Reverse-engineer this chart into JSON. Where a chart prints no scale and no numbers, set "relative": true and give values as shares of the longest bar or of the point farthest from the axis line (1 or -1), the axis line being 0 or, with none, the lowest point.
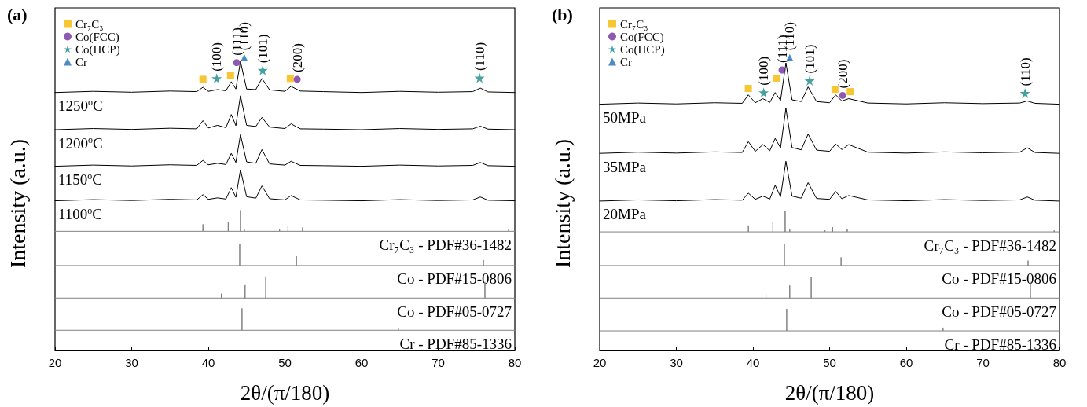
{
  "chart_data": [
    {
      "type": "line",
      "title": "(a)",
      "xlabel": "2θ/(π/180)",
      "ylabel": "Intensity (a.u.)",
      "relative": true,
      "legend": "top left",
      "xlim": [
        20,
        80
      ],
      "xticks": [
        20,
        30,
        40,
        50,
        60,
        70,
        80
      ],
      "x": [
        20,
        25,
        30,
        35,
        38.5,
        39.3,
        40,
        41.2,
        42.3,
        43,
        43.6,
        44.2,
        45,
        46.2,
        47,
        48,
        50,
        50.8,
        52,
        55,
        60,
        65,
        70,
        74.5,
        75.5,
        76.5,
        80
      ],
      "series": [
        {
          "color": "#000000",
          "values": [
            0.881,
            0.885,
            0.882,
            0.886,
            0.884,
            0.899,
            0.885,
            0.891,
            0.887,
            0.918,
            0.893,
            0.987,
            0.893,
            0.891,
            0.929,
            0.89,
            0.885,
            0.902,
            0.886,
            0.884,
            0.881,
            0.885,
            0.882,
            0.884,
            0.896,
            0.883,
            0.881
          ]
        },
        {
          "color": "#000000",
          "values": [
            0.754,
            0.758,
            0.755,
            0.759,
            0.757,
            0.785,
            0.76,
            0.769,
            0.761,
            0.806,
            0.768,
            0.87,
            0.769,
            0.765,
            0.796,
            0.763,
            0.758,
            0.774,
            0.757,
            0.756,
            0.754,
            0.758,
            0.755,
            0.757,
            0.766,
            0.756,
            0.754
          ]
        },
        {
          "color": "#000000",
          "values": [
            0.629,
            0.633,
            0.63,
            0.634,
            0.632,
            0.649,
            0.634,
            0.639,
            0.635,
            0.673,
            0.642,
            0.737,
            0.644,
            0.639,
            0.686,
            0.637,
            0.633,
            0.646,
            0.632,
            0.631,
            0.629,
            0.633,
            0.63,
            0.632,
            0.642,
            0.631,
            0.629
          ]
        },
        {
          "color": "#000000",
          "values": [
            0.511,
            0.515,
            0.512,
            0.516,
            0.514,
            0.532,
            0.516,
            0.521,
            0.517,
            0.556,
            0.523,
            0.617,
            0.525,
            0.52,
            0.562,
            0.518,
            0.514,
            0.529,
            0.514,
            0.513,
            0.511,
            0.515,
            0.512,
            0.514,
            0.524,
            0.513,
            0.511
          ]
        },
        {
          "color": "#808080",
          "x": [
            20,
            39.3,
            39.3,
            39.3,
            42.6,
            42.6,
            42.6,
            44.2,
            44.2,
            44.2,
            44.7,
            44.7,
            44.7,
            49.3,
            49.3,
            49.3,
            50.4,
            50.4,
            50.4,
            52.3,
            52.3,
            52.3,
            79.2,
            79.2,
            79.2,
            80
          ],
          "values": [
            0.407,
            0.407,
            0.431,
            0.407,
            0.407,
            0.44,
            0.407,
            0.407,
            0.479,
            0.407,
            0.407,
            0.415,
            0.407,
            0.407,
            0.413,
            0.407,
            0.407,
            0.425,
            0.407,
            0.407,
            0.42,
            0.407,
            0.407,
            0.415,
            0.407,
            0.407
          ]
        },
        {
          "color": "#808080",
          "x": [
            20,
            44.1,
            44.1,
            44.1,
            51.5,
            51.5,
            51.5,
            75.9,
            75.9,
            75.9,
            80
          ],
          "values": [
            0.29,
            0.29,
            0.364,
            0.29,
            0.29,
            0.322,
            0.29,
            0.29,
            0.309,
            0.29,
            0.29
          ]
        },
        {
          "color": "#808080",
          "x": [
            20,
            41.7,
            41.7,
            41.7,
            44.8,
            44.8,
            44.8,
            47.5,
            47.5,
            47.5,
            76.1,
            76.1,
            76.1,
            80
          ],
          "values": [
            0.179,
            0.179,
            0.194,
            0.179,
            0.179,
            0.223,
            0.179,
            0.179,
            0.253,
            0.179,
            0.179,
            0.234,
            0.179,
            0.179
          ]
        },
        {
          "color": "#808080",
          "x": [
            20,
            44.4,
            44.4,
            44.4,
            64.8,
            64.8,
            64.8,
            80
          ],
          "values": [
            0.069,
            0.069,
            0.144,
            0.069,
            0.069,
            0.077,
            0.069,
            0.069
          ]
        },
        {
          "type": "scatter",
          "name": "Cr₇C₃",
          "marker": "square",
          "color": "#f5b800",
          "x": [
            39.3,
            42.9,
            50.7
          ],
          "values": [
            0.926,
            0.939,
            0.929
          ]
        },
        {
          "type": "scatter",
          "name": "Co(FCC)",
          "marker": "circle",
          "color": "#7030a0",
          "x": [
            43.7,
            51.6
          ],
          "values": [
            0.983,
            0.926
          ]
        },
        {
          "type": "scatter",
          "name": "Co(HCP)",
          "marker": "star",
          "color": "#1a8a8a",
          "x": [
            41.1,
            47.1,
            75.4
          ],
          "values": [
            0.929,
            0.957,
            0.931
          ]
        },
        {
          "type": "scatter",
          "name": "Cr",
          "marker": "triangle",
          "color": "#1f6fb5",
          "x": [
            44.7
          ],
          "values": [
            1
          ]
        }
      ],
      "annotations": [
        {
          "text": "(100)",
          "x": 41.1,
          "y": 0.929
        },
        {
          "text": "(111)",
          "x": 43.7,
          "y": 0.983
        },
        {
          "text": "(110)",
          "x": 44.7,
          "y": 1
        },
        {
          "text": "(101)",
          "x": 47.1,
          "y": 0.957
        },
        {
          "text": "(200)",
          "x": 51.6,
          "y": 0.926
        },
        {
          "text": "(110)",
          "x": 75.4,
          "y": 0.931
        },
        "1250$^{o}$C",
        "1200$^{o}$C",
        "1150$^{o}$C",
        "1100$^{o}$C",
        "Cr₇C₃ - PDF#36-1482",
        "Co - PDF#15-0806",
        "Co - PDF#05-0727",
        "Cr - PDF#85-1336"
      ]
    },
    {
      "type": "line",
      "title": "(b)",
      "xlabel": "2θ/(π/180)",
      "ylabel": "Intensity (a.u.)",
      "relative": true,
      "legend": "top left",
      "xlim": [
        20,
        80
      ],
      "xticks": [
        20,
        30,
        40,
        50,
        60,
        70,
        80
      ],
      "x": [
        20,
        25,
        30,
        35,
        38.6,
        39.4,
        40.3,
        41.3,
        42.2,
        42.9,
        43.6,
        44.3,
        45.1,
        46.3,
        47.2,
        48.3,
        50,
        50.8,
        51.6,
        52.5,
        55,
        60,
        65,
        70,
        74.8,
        75.8,
        76.8,
        80
      ],
      "series": [
        {
          "color": "#000000",
          "values": [
            0.841,
            0.845,
            0.842,
            0.846,
            0.844,
            0.873,
            0.846,
            0.86,
            0.847,
            0.881,
            0.854,
            0.982,
            0.856,
            0.85,
            0.9,
            0.85,
            0.846,
            0.873,
            0.852,
            0.86,
            0.845,
            0.842,
            0.846,
            0.843,
            0.845,
            0.852,
            0.844,
            0.841
          ]
        },
        {
          "color": "#000000",
          "values": [
            0.673,
            0.677,
            0.674,
            0.678,
            0.676,
            0.713,
            0.68,
            0.703,
            0.682,
            0.724,
            0.692,
            0.827,
            0.693,
            0.685,
            0.739,
            0.684,
            0.68,
            0.705,
            0.686,
            0.703,
            0.677,
            0.674,
            0.678,
            0.675,
            0.677,
            0.692,
            0.676,
            0.673
          ]
        },
        {
          "color": "#000000",
          "values": [
            0.51,
            0.514,
            0.511,
            0.515,
            0.513,
            0.537,
            0.516,
            0.527,
            0.517,
            0.564,
            0.525,
            0.646,
            0.527,
            0.52,
            0.573,
            0.519,
            0.516,
            0.543,
            0.518,
            0.529,
            0.514,
            0.511,
            0.515,
            0.512,
            0.514,
            0.524,
            0.513,
            0.51
          ]
        },
        {
          "color": "#808080",
          "x": [
            20,
            39.4,
            39.4,
            39.4,
            42.6,
            42.6,
            42.6,
            44.2,
            44.2,
            44.2,
            44.8,
            44.8,
            44.8,
            49.4,
            49.4,
            49.4,
            50.4,
            50.4,
            50.4,
            52.3,
            52.3,
            52.3,
            79.3,
            79.3,
            79.3,
            80
          ],
          "values": [
            0.405,
            0.405,
            0.427,
            0.405,
            0.405,
            0.437,
            0.405,
            0.405,
            0.475,
            0.405,
            0.405,
            0.413,
            0.405,
            0.405,
            0.41,
            0.405,
            0.405,
            0.421,
            0.405,
            0.405,
            0.416,
            0.405,
            0.405,
            0.41,
            0.405,
            0.405
          ]
        },
        {
          "color": "#808080",
          "x": [
            20,
            44.1,
            44.1,
            44.1,
            51.5,
            51.5,
            51.5,
            75.9,
            75.9,
            75.9,
            80
          ],
          "values": [
            0.29,
            0.29,
            0.362,
            0.29,
            0.29,
            0.318,
            0.29,
            0.29,
            0.307,
            0.29,
            0.29
          ]
        },
        {
          "color": "#808080",
          "x": [
            20,
            41.7,
            41.7,
            41.7,
            44.8,
            44.8,
            44.8,
            47.6,
            47.6,
            47.6,
            76.2,
            76.2,
            76.2,
            80
          ],
          "values": [
            0.179,
            0.179,
            0.193,
            0.179,
            0.179,
            0.222,
            0.179,
            0.179,
            0.25,
            0.179,
            0.179,
            0.234,
            0.179,
            0.179
          ]
        },
        {
          "color": "#808080",
          "x": [
            20,
            44.4,
            44.4,
            44.4,
            64.8,
            64.8,
            64.8,
            80
          ],
          "values": [
            0.067,
            0.067,
            0.142,
            0.067,
            0.067,
            0.078,
            0.067,
            0.067
          ]
        },
        {
          "type": "scatter",
          "name": "Cr₇C₃",
          "marker": "square",
          "color": "#f5b800",
          "x": [
            39.4,
            43.1,
            50.7,
            52.7
          ],
          "values": [
            0.895,
            0.93,
            0.892,
            0.884
          ]
        },
        {
          "type": "scatter",
          "name": "Co(FCC)",
          "marker": "circle",
          "color": "#7030a0",
          "x": [
            43.8,
            51.7
          ],
          "values": [
            0.958,
            0.871
          ]
        },
        {
          "type": "scatter",
          "name": "Co(HCP)",
          "marker": "star",
          "color": "#1a8a8a",
          "x": [
            41.4,
            47.4,
            75.5
          ],
          "values": [
            0.881,
            0.922,
            0.879
          ]
        },
        {
          "type": "scatter",
          "name": "Cr",
          "marker": "triangle",
          "color": "#1f6fb5",
          "x": [
            44.8
          ],
          "values": [
            1
          ]
        }
      ],
      "annotations": [
        {
          "text": "(100)",
          "x": 41.4,
          "y": 0.881
        },
        {
          "text": "(111)",
          "x": 43.8,
          "y": 0.958
        },
        {
          "text": "(110)",
          "x": 44.8,
          "y": 1
        },
        {
          "text": "(101)",
          "x": 47.4,
          "y": 0.922
        },
        {
          "text": "(200)",
          "x": 51.7,
          "y": 0.871
        },
        {
          "text": "(110)",
          "x": 75.5,
          "y": 0.879
        },
        "50MPa",
        "35MPa",
        "20MPa",
        "Cr₇C₃ - PDF#36-1482",
        "Co - PDF#15-0806",
        "Co - PDF#05-0727",
        "Cr - PDF#85-1336"
      ]
    }
  ]
}
